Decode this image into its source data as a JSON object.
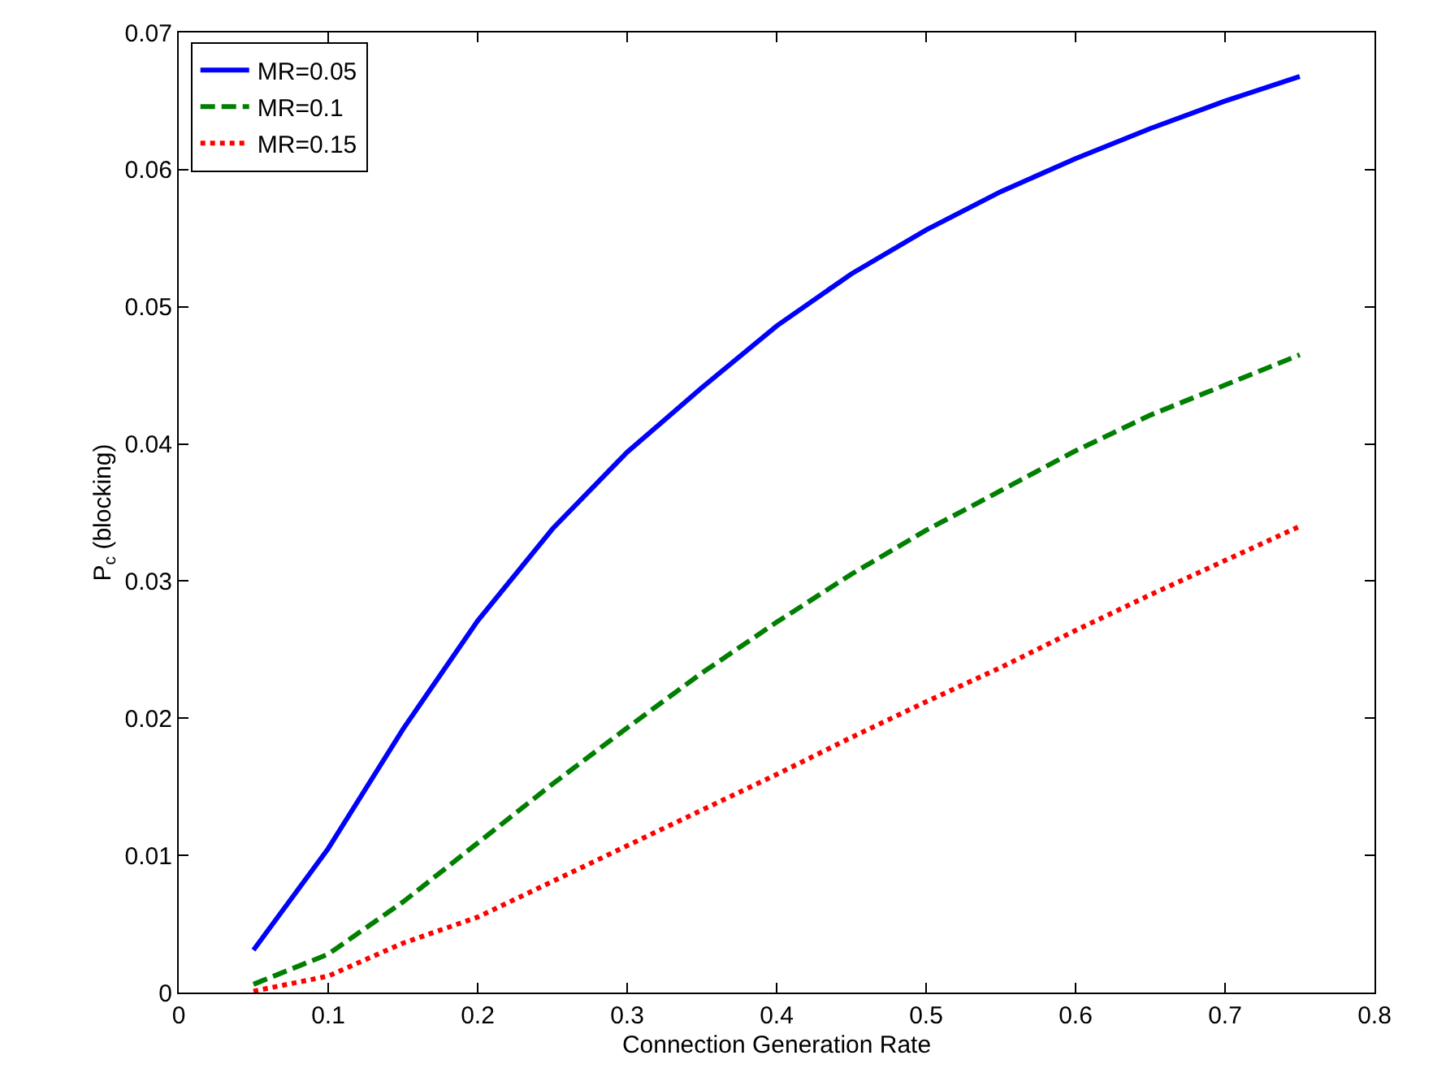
{
  "chart_data": {
    "type": "line",
    "xlabel": "Connection Generation Rate",
    "ylabel": "P$_{c}$ (blocking)",
    "x": [
      0.05,
      0.1,
      0.15,
      0.2,
      0.25,
      0.3,
      0.35,
      0.4,
      0.45,
      0.5,
      0.55,
      0.6,
      0.65,
      0.7,
      0.75
    ],
    "series": [
      {
        "name": "MR=0.05",
        "color": "#0000ff",
        "line_style": "solid",
        "values": [
          0.0031,
          0.0105,
          0.0192,
          0.0271,
          0.0338,
          0.0394,
          0.0441,
          0.0486,
          0.0524,
          0.0556,
          0.0584,
          0.0608,
          0.063,
          0.065,
          0.0668
        ]
      },
      {
        "name": "MR=0.1",
        "color": "#007f00",
        "line_style": "dashed",
        "values": [
          0.0006,
          0.0028,
          0.0066,
          0.0109,
          0.0152,
          0.0193,
          0.0233,
          0.027,
          0.0305,
          0.0337,
          0.0366,
          0.0395,
          0.0421,
          0.0443,
          0.0465
        ]
      },
      {
        "name": "MR=0.15",
        "color": "#ff0000",
        "line_style": "dotted",
        "values": [
          0.0001,
          0.0012,
          0.0036,
          0.0055,
          0.0081,
          0.0107,
          0.0133,
          0.0159,
          0.0186,
          0.0212,
          0.0237,
          0.0264,
          0.029,
          0.0315,
          0.034
        ]
      }
    ],
    "xlim": [
      0,
      0.8
    ],
    "xticks": [
      0,
      0.1,
      0.2,
      0.3,
      0.4,
      0.5,
      0.6,
      0.7,
      0.8
    ],
    "ylim": [
      0,
      0.07
    ],
    "yticks": [
      0,
      0.01,
      0.02,
      0.03,
      0.04,
      0.05,
      0.06,
      0.07
    ],
    "grid": false,
    "legend": "top left",
    "marker": "none"
  }
}
